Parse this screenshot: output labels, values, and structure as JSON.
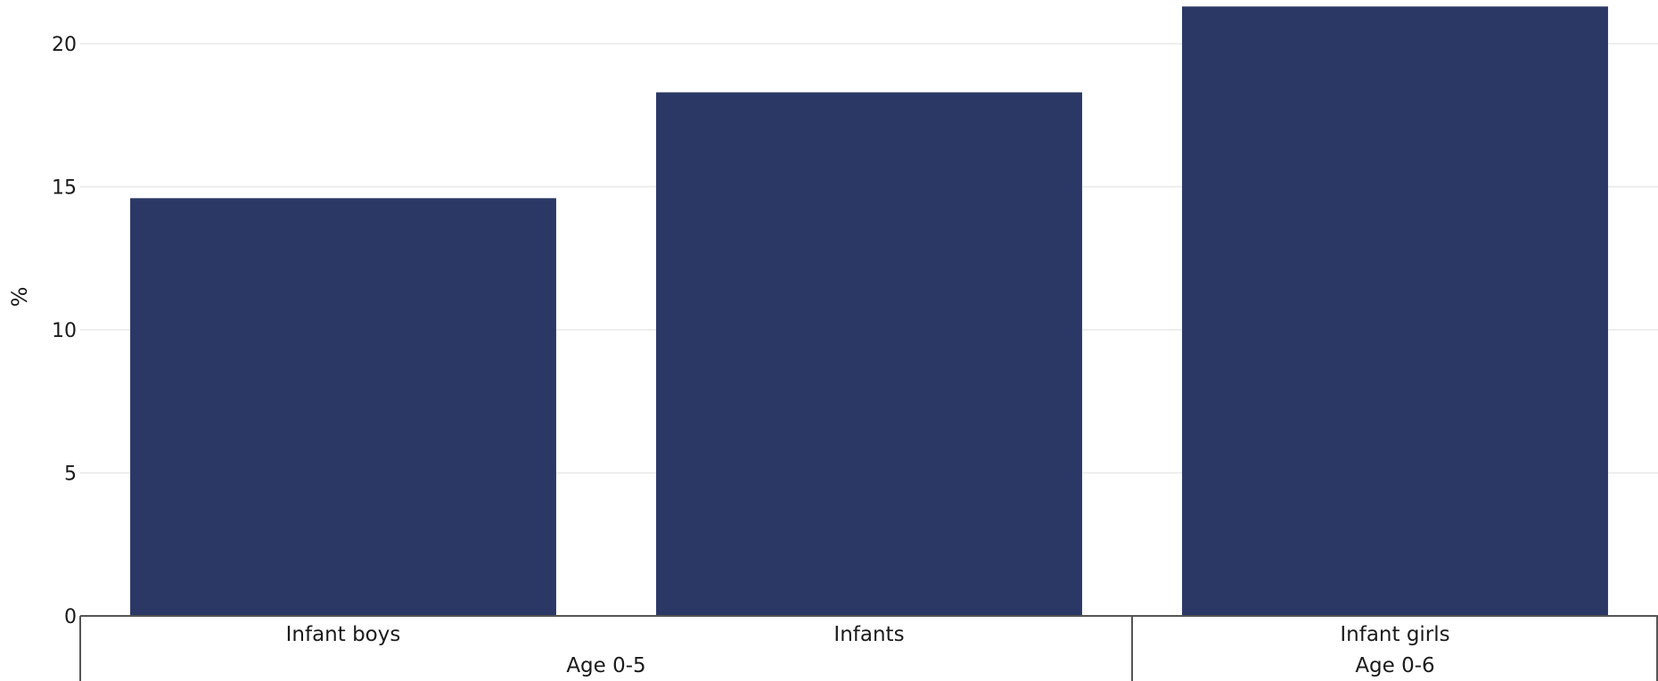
{
  "chart_data": {
    "type": "bar",
    "categories": [
      "Infant boys",
      "Infants",
      "Infant girls"
    ],
    "groups": [
      {
        "label": "Age 0-5",
        "categories": [
          "Infant boys",
          "Infants"
        ]
      },
      {
        "label": "Age 0-6",
        "categories": [
          "Infant girls"
        ]
      }
    ],
    "values": [
      14.6,
      18.3,
      21.3
    ],
    "xlabel": "",
    "ylabel": "%",
    "yticks": [
      "0",
      "5",
      "10",
      "15",
      "20"
    ],
    "ylim": [
      0,
      21.3
    ],
    "grid": true,
    "colors": {
      "bar": "#2b3865",
      "grid": "#e8e8e8",
      "axis": "#555555"
    }
  }
}
